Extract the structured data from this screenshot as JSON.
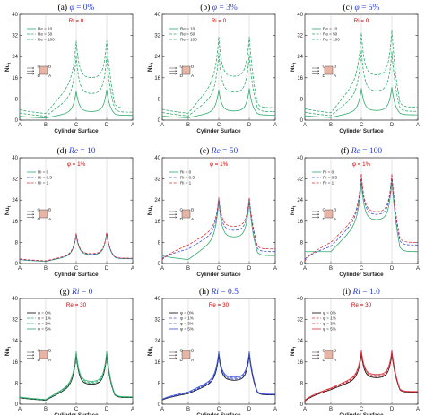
{
  "chart_data": [
    {
      "type": "line",
      "panel_label": "(a)",
      "title_var": "φ",
      "title_val": "= 0%",
      "annotation": "Ri = 0",
      "xlabel": "Cylinder Surface",
      "ylabel": "Nu",
      "xticks": [
        "A",
        "B",
        "C",
        "D",
        "A"
      ],
      "ylim": [
        0,
        40
      ],
      "yticks": [
        0,
        8,
        16,
        24,
        32,
        40
      ],
      "legend_placement": "top-left",
      "series": [
        {
          "name": "Re = 10",
          "color": "#2eaa6c",
          "dash": "solid",
          "values": {
            "A": 1.5,
            "B": 0.8,
            "C_peak": 11.0,
            "CD_mid": 3.2,
            "D_peak": 11.5,
            "A_end": 1.8
          }
        },
        {
          "name": "Re = 50",
          "color": "#2eaa6c",
          "dash": "dashed",
          "values": {
            "A": 2.8,
            "B": 1.5,
            "C_peak": 24.5,
            "CD_mid": 10.0,
            "D_peak": 24.0,
            "A_end": 3.0
          }
        },
        {
          "name": "Re = 100",
          "color": "#2eaa6c",
          "dash": "dashed",
          "values": {
            "A": 4.0,
            "B": 2.5,
            "C_peak": 30.0,
            "CD_mid": 16.0,
            "D_peak": 30.0,
            "A_end": 4.5
          }
        }
      ]
    },
    {
      "type": "line",
      "panel_label": "(b)",
      "title_var": "φ",
      "title_val": "= 3%",
      "annotation": "Ri = 0",
      "xlabel": "Cylinder Surface",
      "ylabel": "Nu",
      "xticks": [
        "A",
        "B",
        "C",
        "D",
        "A"
      ],
      "ylim": [
        0,
        40
      ],
      "yticks": [
        0,
        8,
        16,
        24,
        32,
        40
      ],
      "legend_placement": "top-left",
      "series": [
        {
          "name": "Re = 10",
          "color": "#2eaa6c",
          "dash": "solid",
          "values": {
            "A": 1.6,
            "B": 0.9,
            "C_peak": 11.5,
            "CD_mid": 3.4,
            "D_peak": 12.0,
            "A_end": 1.9
          }
        },
        {
          "name": "Re = 50",
          "color": "#2eaa6c",
          "dash": "dashed",
          "values": {
            "A": 3.0,
            "B": 1.6,
            "C_peak": 25.5,
            "CD_mid": 10.5,
            "D_peak": 25.0,
            "A_end": 3.2
          }
        },
        {
          "name": "Re = 100",
          "color": "#2eaa6c",
          "dash": "dashed",
          "values": {
            "A": 4.2,
            "B": 2.6,
            "C_peak": 31.5,
            "CD_mid": 16.5,
            "D_peak": 31.5,
            "A_end": 4.7
          }
        }
      ]
    },
    {
      "type": "line",
      "panel_label": "(c)",
      "title_var": "φ",
      "title_val": "= 5%",
      "annotation": "Ri = 0",
      "xlabel": "Cylinder Surface",
      "ylabel": "Nu",
      "xticks": [
        "A",
        "B",
        "C",
        "D",
        "A"
      ],
      "ylim": [
        0,
        40
      ],
      "yticks": [
        0,
        8,
        16,
        24,
        32,
        40
      ],
      "legend_placement": "top-left",
      "series": [
        {
          "name": "Re = 10",
          "color": "#2eaa6c",
          "dash": "solid",
          "values": {
            "A": 1.7,
            "B": 1.0,
            "C_peak": 12.0,
            "CD_mid": 3.6,
            "D_peak": 12.5,
            "A_end": 2.0
          }
        },
        {
          "name": "Re = 50",
          "color": "#2eaa6c",
          "dash": "dashed",
          "values": {
            "A": 3.1,
            "B": 1.7,
            "C_peak": 26.5,
            "CD_mid": 11.0,
            "D_peak": 26.0,
            "A_end": 3.3
          }
        },
        {
          "name": "Re = 100",
          "color": "#2eaa6c",
          "dash": "dashed",
          "values": {
            "A": 4.4,
            "B": 2.8,
            "C_peak": 33.0,
            "CD_mid": 17.0,
            "D_peak": 34.0,
            "A_end": 4.9
          }
        }
      ]
    },
    {
      "type": "line",
      "panel_label": "(d)",
      "title_var": "Re",
      "title_val": "= 10",
      "annotation": "φ = 1%",
      "xlabel": "Cylinder Surface",
      "ylabel": "Nu",
      "xticks": [
        "A",
        "B",
        "C",
        "D",
        "A"
      ],
      "ylim": [
        0,
        40
      ],
      "yticks": [
        0,
        8,
        16,
        24,
        32,
        40
      ],
      "legend_placement": "top-left",
      "series": [
        {
          "name": "Ri = 0",
          "color": "#2eaa6c",
          "dash": "solid",
          "values": {
            "A": 1.5,
            "B": 0.8,
            "C_peak": 11.0,
            "CD_mid": 3.3,
            "D_peak": 11.5,
            "A_end": 1.8
          }
        },
        {
          "name": "Ri = 0.5",
          "color": "#3b4fd8",
          "dash": "dashed",
          "values": {
            "A": 1.6,
            "B": 0.9,
            "C_peak": 11.2,
            "CD_mid": 3.5,
            "D_peak": 11.6,
            "A_end": 1.9
          }
        },
        {
          "name": "Ri = 1",
          "color": "#d8313b",
          "dash": "dashed",
          "values": {
            "A": 1.8,
            "B": 1.0,
            "C_peak": 11.5,
            "CD_mid": 3.7,
            "D_peak": 11.8,
            "A_end": 2.0
          }
        }
      ]
    },
    {
      "type": "line",
      "panel_label": "(e)",
      "title_var": "Re",
      "title_val": "= 50",
      "annotation": "φ = 1%",
      "xlabel": "Cylinder Surface",
      "ylabel": "Nu",
      "xticks": [
        "A",
        "B",
        "C",
        "D",
        "A"
      ],
      "ylim": [
        0,
        40
      ],
      "yticks": [
        0,
        8,
        16,
        24,
        32,
        40
      ],
      "legend_placement": "top-left",
      "series": [
        {
          "name": "Ri = 0",
          "color": "#2eaa6c",
          "dash": "solid",
          "values": {
            "A": 3.0,
            "B": 1.5,
            "C_peak": 24.0,
            "CD_mid": 10.0,
            "D_peak": 24.0,
            "A_end": 3.0
          }
        },
        {
          "name": "Ri = 0.5",
          "color": "#3b4fd8",
          "dash": "dashed",
          "values": {
            "A": 1.8,
            "B": 5.5,
            "C_peak": 24.5,
            "CD_mid": 12.5,
            "D_peak": 24.5,
            "A_end": 4.5
          }
        },
        {
          "name": "Ri = 1",
          "color": "#d8313b",
          "dash": "dashed",
          "values": {
            "A": 1.2,
            "B": 7.0,
            "C_peak": 25.0,
            "CD_mid": 14.0,
            "D_peak": 25.0,
            "A_end": 5.5
          }
        }
      ]
    },
    {
      "type": "line",
      "panel_label": "(f)",
      "title_var": "Re",
      "title_val": "= 100",
      "annotation": "φ = 1%",
      "xlabel": "Cylinder Surface",
      "ylabel": "Nu",
      "xticks": [
        "A",
        "B",
        "C",
        "D",
        "A"
      ],
      "ylim": [
        0,
        40
      ],
      "yticks": [
        0,
        8,
        16,
        24,
        32,
        40
      ],
      "legend_placement": "top-left",
      "series": [
        {
          "name": "Ri = 0",
          "color": "#2eaa6c",
          "dash": "solid",
          "values": {
            "A": 4.5,
            "B": 4.5,
            "C_peak": 31.0,
            "CD_mid": 16.5,
            "D_peak": 31.5,
            "A_end": 4.5
          }
        },
        {
          "name": "Ri = 0.5",
          "color": "#3b4fd8",
          "dash": "dashed",
          "values": {
            "A": 1.5,
            "B": 6.5,
            "C_peak": 33.0,
            "CD_mid": 18.5,
            "D_peak": 33.0,
            "A_end": 7.0
          }
        },
        {
          "name": "Ri = 1",
          "color": "#d8313b",
          "dash": "dashed",
          "values": {
            "A": 0.8,
            "B": 8.0,
            "C_peak": 34.0,
            "CD_mid": 19.5,
            "D_peak": 34.0,
            "A_end": 8.0
          }
        }
      ]
    },
    {
      "type": "line",
      "panel_label": "(g)",
      "title_var": "Ri",
      "title_val": "= 0",
      "annotation": "Re = 30",
      "xlabel": "Cylinder Surface",
      "ylabel": "Nu",
      "xticks": [
        "A",
        "B",
        "C",
        "D",
        "A"
      ],
      "ylim": [
        0,
        40
      ],
      "yticks": [
        0,
        8,
        16,
        24,
        32,
        40
      ],
      "legend_placement": "top-left",
      "series": [
        {
          "name": "φ = 0%",
          "color": "#000000",
          "dash": "solid",
          "values": {
            "A": 2.5,
            "B": 1.5,
            "C_peak": 18.5,
            "CD_mid": 7.5,
            "D_peak": 18.5,
            "A_end": 2.5
          }
        },
        {
          "name": "φ = 1%",
          "color": "#2eaa6c",
          "dash": "dashed",
          "values": {
            "A": 2.6,
            "B": 1.6,
            "C_peak": 19.0,
            "CD_mid": 7.8,
            "D_peak": 19.0,
            "A_end": 2.6
          }
        },
        {
          "name": "φ = 3%",
          "color": "#2eaa6c",
          "dash": "dashed",
          "values": {
            "A": 2.7,
            "B": 1.7,
            "C_peak": 19.5,
            "CD_mid": 8.2,
            "D_peak": 19.5,
            "A_end": 2.7
          }
        },
        {
          "name": "φ = 5%",
          "color": "#2eaa6c",
          "dash": "solid",
          "values": {
            "A": 2.8,
            "B": 1.8,
            "C_peak": 20.0,
            "CD_mid": 8.6,
            "D_peak": 20.0,
            "A_end": 2.8
          }
        }
      ]
    },
    {
      "type": "line",
      "panel_label": "(h)",
      "title_var": "Ri",
      "title_val": "= 0.5",
      "annotation": "Re = 30",
      "xlabel": "Cylinder Surface",
      "ylabel": "Nu",
      "xticks": [
        "A",
        "B",
        "C",
        "D",
        "A"
      ],
      "ylim": [
        0,
        40
      ],
      "yticks": [
        0,
        8,
        16,
        24,
        32,
        40
      ],
      "legend_placement": "top-left",
      "series": [
        {
          "name": "φ = 0%",
          "color": "#000000",
          "dash": "solid",
          "values": {
            "A": 1.5,
            "B": 4.0,
            "C_peak": 18.5,
            "CD_mid": 9.0,
            "D_peak": 18.5,
            "A_end": 3.5
          }
        },
        {
          "name": "φ = 1%",
          "color": "#3b4fd8",
          "dash": "dashed",
          "values": {
            "A": 1.6,
            "B": 4.2,
            "C_peak": 19.0,
            "CD_mid": 9.4,
            "D_peak": 19.0,
            "A_end": 3.6
          }
        },
        {
          "name": "φ = 3%",
          "color": "#3b4fd8",
          "dash": "dashed",
          "values": {
            "A": 1.7,
            "B": 4.4,
            "C_peak": 19.5,
            "CD_mid": 9.8,
            "D_peak": 19.5,
            "A_end": 3.7
          }
        },
        {
          "name": "φ = 5%",
          "color": "#3b4fd8",
          "dash": "solid",
          "values": {
            "A": 1.8,
            "B": 4.6,
            "C_peak": 20.0,
            "CD_mid": 10.2,
            "D_peak": 20.0,
            "A_end": 3.8
          }
        }
      ]
    },
    {
      "type": "line",
      "panel_label": "(i)",
      "title_var": "Ri",
      "title_val": "= 1.0",
      "annotation": "Re = 30",
      "xlabel": "Cylinder Surface",
      "ylabel": "Nu",
      "xticks": [
        "A",
        "B",
        "C",
        "D",
        "A"
      ],
      "ylim": [
        0,
        40
      ],
      "yticks": [
        0,
        8,
        16,
        24,
        32,
        40
      ],
      "legend_placement": "top-left",
      "series": [
        {
          "name": "φ = 0%",
          "color": "#000000",
          "dash": "solid",
          "values": {
            "A": 1.0,
            "B": 5.5,
            "C_peak": 19.0,
            "CD_mid": 10.0,
            "D_peak": 19.0,
            "A_end": 4.5
          }
        },
        {
          "name": "φ = 1%",
          "color": "#d8313b",
          "dash": "dashed",
          "values": {
            "A": 1.1,
            "B": 5.7,
            "C_peak": 19.5,
            "CD_mid": 10.4,
            "D_peak": 19.5,
            "A_end": 4.6
          }
        },
        {
          "name": "φ = 3%",
          "color": "#d8313b",
          "dash": "dashed",
          "values": {
            "A": 1.2,
            "B": 5.9,
            "C_peak": 20.0,
            "CD_mid": 10.8,
            "D_peak": 20.0,
            "A_end": 4.7
          }
        },
        {
          "name": "φ = 5%",
          "color": "#d8313b",
          "dash": "solid",
          "values": {
            "A": 1.3,
            "B": 6.1,
            "C_peak": 20.5,
            "CD_mid": 11.2,
            "D_peak": 20.5,
            "A_end": 4.8
          }
        }
      ]
    }
  ]
}
